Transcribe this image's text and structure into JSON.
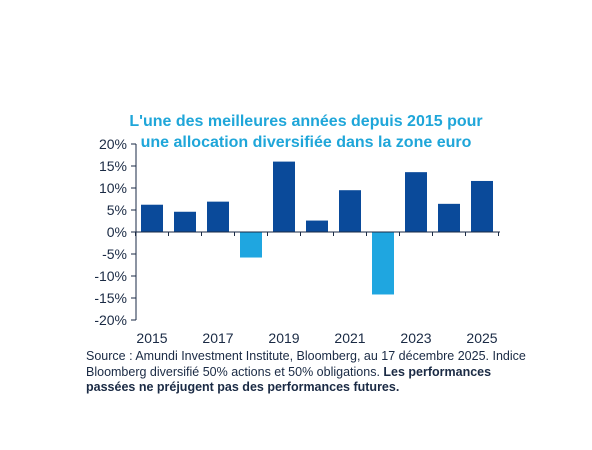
{
  "chart_data": {
    "type": "bar",
    "title_lines": [
      "L'une des meilleures années depuis 2015 pour",
      "une allocation diversifiée dans la zone euro"
    ],
    "categories": [
      "2015",
      "2016",
      "2017",
      "2018",
      "2019",
      "2020",
      "2021",
      "2022",
      "2023",
      "2024",
      "2025"
    ],
    "x_tick_labels": [
      "2015",
      "2017",
      "2019",
      "2021",
      "2023",
      "2025"
    ],
    "values": [
      6.2,
      4.6,
      6.9,
      -5.8,
      16.0,
      2.6,
      9.5,
      -14.2,
      13.6,
      6.4,
      11.6
    ],
    "ylim": [
      -20,
      20
    ],
    "y_ticks": [
      20,
      15,
      10,
      5,
      0,
      -5,
      -10,
      -15,
      -20
    ],
    "y_tick_format": "{v}%",
    "grid": false,
    "colors": {
      "positive": "#0a4a9a",
      "negative": "#1fa6e0",
      "axis": "#1a2a44"
    }
  },
  "source": {
    "text": "Source : Amundi Investment Institute, Bloomberg, au 17 décembre 2025. Indice Bloomberg diversifié 50% actions et 50% obligations. ",
    "bold": "Les performances passées ne préjugent pas des performances futures."
  }
}
